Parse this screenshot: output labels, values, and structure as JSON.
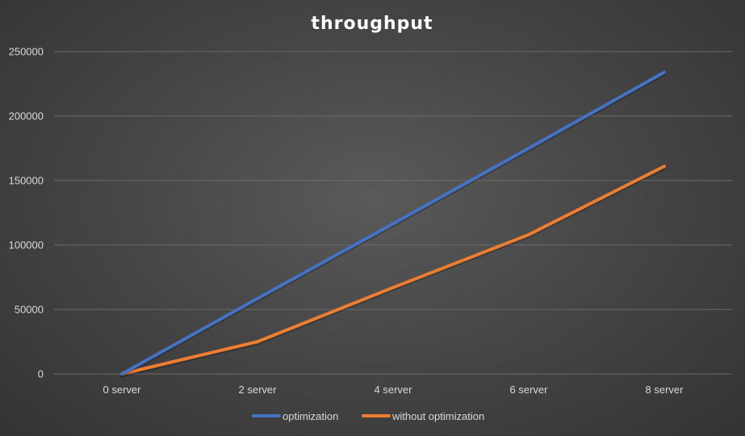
{
  "chart_data": {
    "type": "line",
    "title": "throughput",
    "categories": [
      "0 server",
      "2 server",
      "4 server",
      "6 server",
      "8 server"
    ],
    "series": [
      {
        "name": "optimization",
        "color": "#4472c4",
        "values": [
          0,
          58500,
          116500,
          175000,
          234000
        ]
      },
      {
        "name": "without optimization",
        "color": "#ed7d31",
        "values": [
          0,
          25000,
          67000,
          108000,
          161000
        ]
      }
    ],
    "y_ticks": [
      "0",
      "50000",
      "100000",
      "150000",
      "200000",
      "250000"
    ],
    "ylim": [
      0,
      250000
    ],
    "grid": true,
    "legend_position": "bottom"
  }
}
